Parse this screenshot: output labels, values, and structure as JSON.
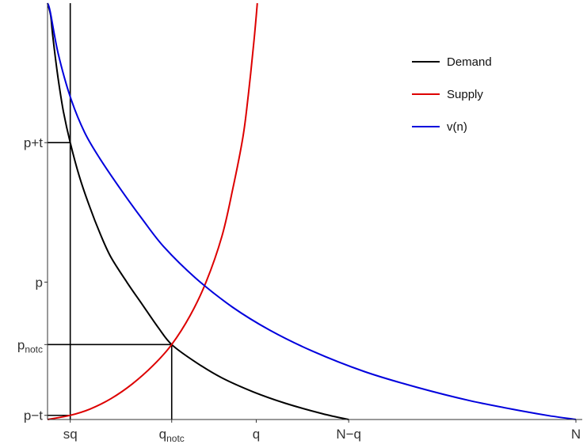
{
  "chart_data": {
    "type": "line",
    "title": "",
    "xlabel": "",
    "ylabel": "",
    "xlim": [
      0,
      1
    ],
    "ylim": [
      0,
      1
    ],
    "grid": false,
    "legend_position": "top-right",
    "x_ticks": [
      {
        "value": 0.043,
        "label": "sq"
      },
      {
        "value": 0.235,
        "label": "q",
        "sub": "notc"
      },
      {
        "value": 0.395,
        "label": "q"
      },
      {
        "value": 0.57,
        "label": "N−q"
      },
      {
        "value": 1.0,
        "label": "N"
      }
    ],
    "y_ticks": [
      {
        "value": 0.01,
        "label": "p−t"
      },
      {
        "value": 0.18,
        "label": "p",
        "sub": "notc"
      },
      {
        "value": 0.33,
        "label": "p"
      },
      {
        "value": 0.665,
        "label": "p+t"
      }
    ],
    "series": [
      {
        "name": "Demand",
        "color": "#000000",
        "x": [
          0.0,
          0.006,
          0.01,
          0.02,
          0.03,
          0.043,
          0.06,
          0.08,
          0.1,
          0.12,
          0.15,
          0.18,
          0.21,
          0.235,
          0.28,
          0.33,
          0.39,
          0.45,
          0.52,
          0.57
        ],
        "y": [
          1.0,
          0.97,
          0.92,
          0.82,
          0.74,
          0.665,
          0.585,
          0.51,
          0.445,
          0.39,
          0.33,
          0.275,
          0.22,
          0.18,
          0.138,
          0.1,
          0.066,
          0.039,
          0.014,
          0.0
        ]
      },
      {
        "name": "Supply",
        "color": "#dd0000",
        "x": [
          0.0,
          0.043,
          0.08,
          0.12,
          0.16,
          0.2,
          0.235,
          0.27,
          0.3,
          0.33,
          0.35,
          0.37,
          0.38,
          0.39,
          0.395,
          0.397
        ],
        "y": [
          0.0,
          0.01,
          0.025,
          0.05,
          0.085,
          0.13,
          0.18,
          0.25,
          0.33,
          0.44,
          0.55,
          0.68,
          0.78,
          0.9,
          0.97,
          1.0
        ]
      },
      {
        "name": "v(n)",
        "color": "#0000dd",
        "x": [
          0.0,
          0.005,
          0.02,
          0.043,
          0.07,
          0.1,
          0.14,
          0.18,
          0.22,
          0.28,
          0.35,
          0.42,
          0.5,
          0.6,
          0.7,
          0.8,
          0.9,
          0.95,
          1.0
        ],
        "y": [
          1.0,
          0.98,
          0.88,
          0.775,
          0.69,
          0.625,
          0.55,
          0.48,
          0.415,
          0.34,
          0.27,
          0.215,
          0.165,
          0.115,
          0.077,
          0.045,
          0.02,
          0.009,
          0.0
        ]
      }
    ],
    "reference_lines": [
      {
        "type": "vertical",
        "x": 0.043,
        "y_from": 0.0,
        "y_to": 1.0
      },
      {
        "type": "vertical",
        "x": 0.235,
        "y_from": 0.0,
        "y_to": 0.18
      },
      {
        "type": "horizontal",
        "y": 0.665,
        "x_from": 0.0,
        "x_to": 0.043
      },
      {
        "type": "horizontal",
        "y": 0.18,
        "x_from": 0.0,
        "x_to": 0.235
      },
      {
        "type": "horizontal",
        "y": 0.01,
        "x_from": 0.0,
        "x_to": 0.043
      }
    ]
  }
}
